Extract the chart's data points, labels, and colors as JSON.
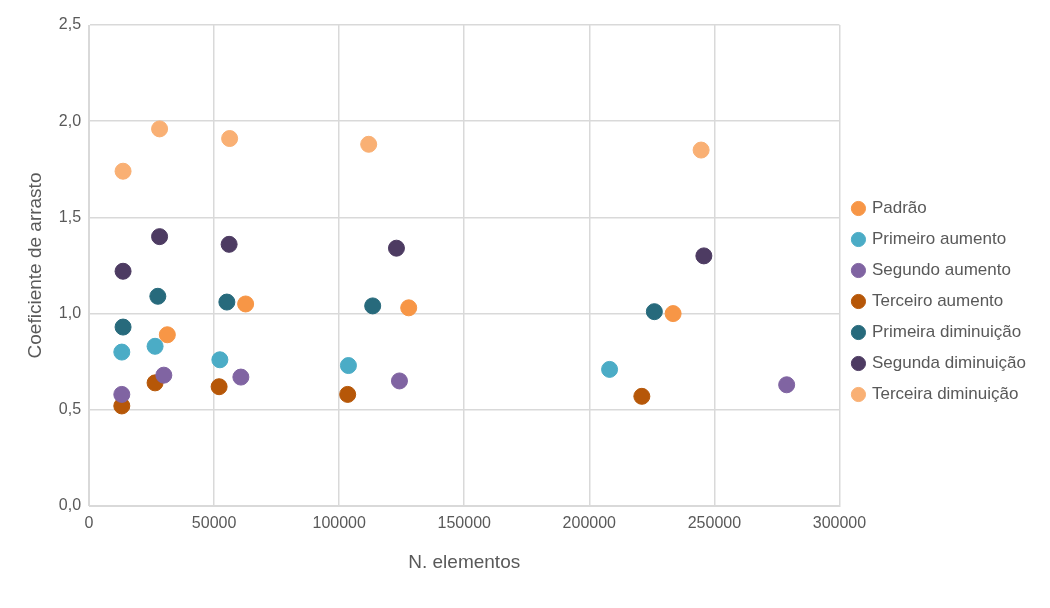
{
  "chart_data": {
    "type": "scatter",
    "xlabel": "N. elementos",
    "ylabel": "Coeficiente de arrasto",
    "xlim": [
      0,
      300000
    ],
    "xticks": [
      0,
      50000,
      100000,
      150000,
      200000,
      250000,
      300000
    ],
    "ylim": [
      0,
      2.5
    ],
    "yticks": [
      {
        "value": 0,
        "label": "0,0"
      },
      {
        "value": 0.5,
        "label": "0,5"
      },
      {
        "value": 1,
        "label": "1,0"
      },
      {
        "value": 1.5,
        "label": "1,5"
      },
      {
        "value": 2,
        "label": "2,0"
      },
      {
        "value": 2.5,
        "label": "2,5"
      }
    ],
    "grid": true,
    "legend": "right",
    "marker": "circle",
    "series": [
      {
        "name": "Padrão",
        "color": "#f79646",
        "x": [
          31300,
          62600,
          127800,
          233500
        ],
        "values": [
          0.89,
          1.05,
          1.03,
          1.0
        ]
      },
      {
        "name": "Primeiro aumento",
        "color": "#4bacc6",
        "x": [
          13100,
          26400,
          52300,
          103700,
          208100
        ],
        "values": [
          0.8,
          0.83,
          0.76,
          0.73,
          0.71
        ]
      },
      {
        "name": "Segundo aumento",
        "color": "#8064a2",
        "x": [
          13100,
          29900,
          60700,
          124100,
          278900
        ],
        "values": [
          0.58,
          0.68,
          0.67,
          0.65,
          0.63
        ]
      },
      {
        "name": "Terceiro aumento",
        "color": "#b65708",
        "x": [
          13100,
          26400,
          52000,
          103400,
          221000
        ],
        "values": [
          0.52,
          0.64,
          0.62,
          0.58,
          0.57
        ]
      },
      {
        "name": "Primeira diminuição",
        "color": "#276a7c",
        "x": [
          13600,
          27500,
          55100,
          113400,
          226000
        ],
        "values": [
          0.93,
          1.09,
          1.06,
          1.04,
          1.01
        ]
      },
      {
        "name": "Segunda diminuição",
        "color": "#4d3b62",
        "x": [
          13600,
          28200,
          56000,
          122900,
          245800
        ],
        "values": [
          1.22,
          1.4,
          1.36,
          1.34,
          1.3
        ]
      },
      {
        "name": "Terceira diminuição",
        "color": "#f9b074",
        "x": [
          13600,
          28200,
          56200,
          111800,
          244700
        ],
        "values": [
          1.74,
          1.96,
          1.91,
          1.88,
          1.85
        ]
      }
    ]
  }
}
